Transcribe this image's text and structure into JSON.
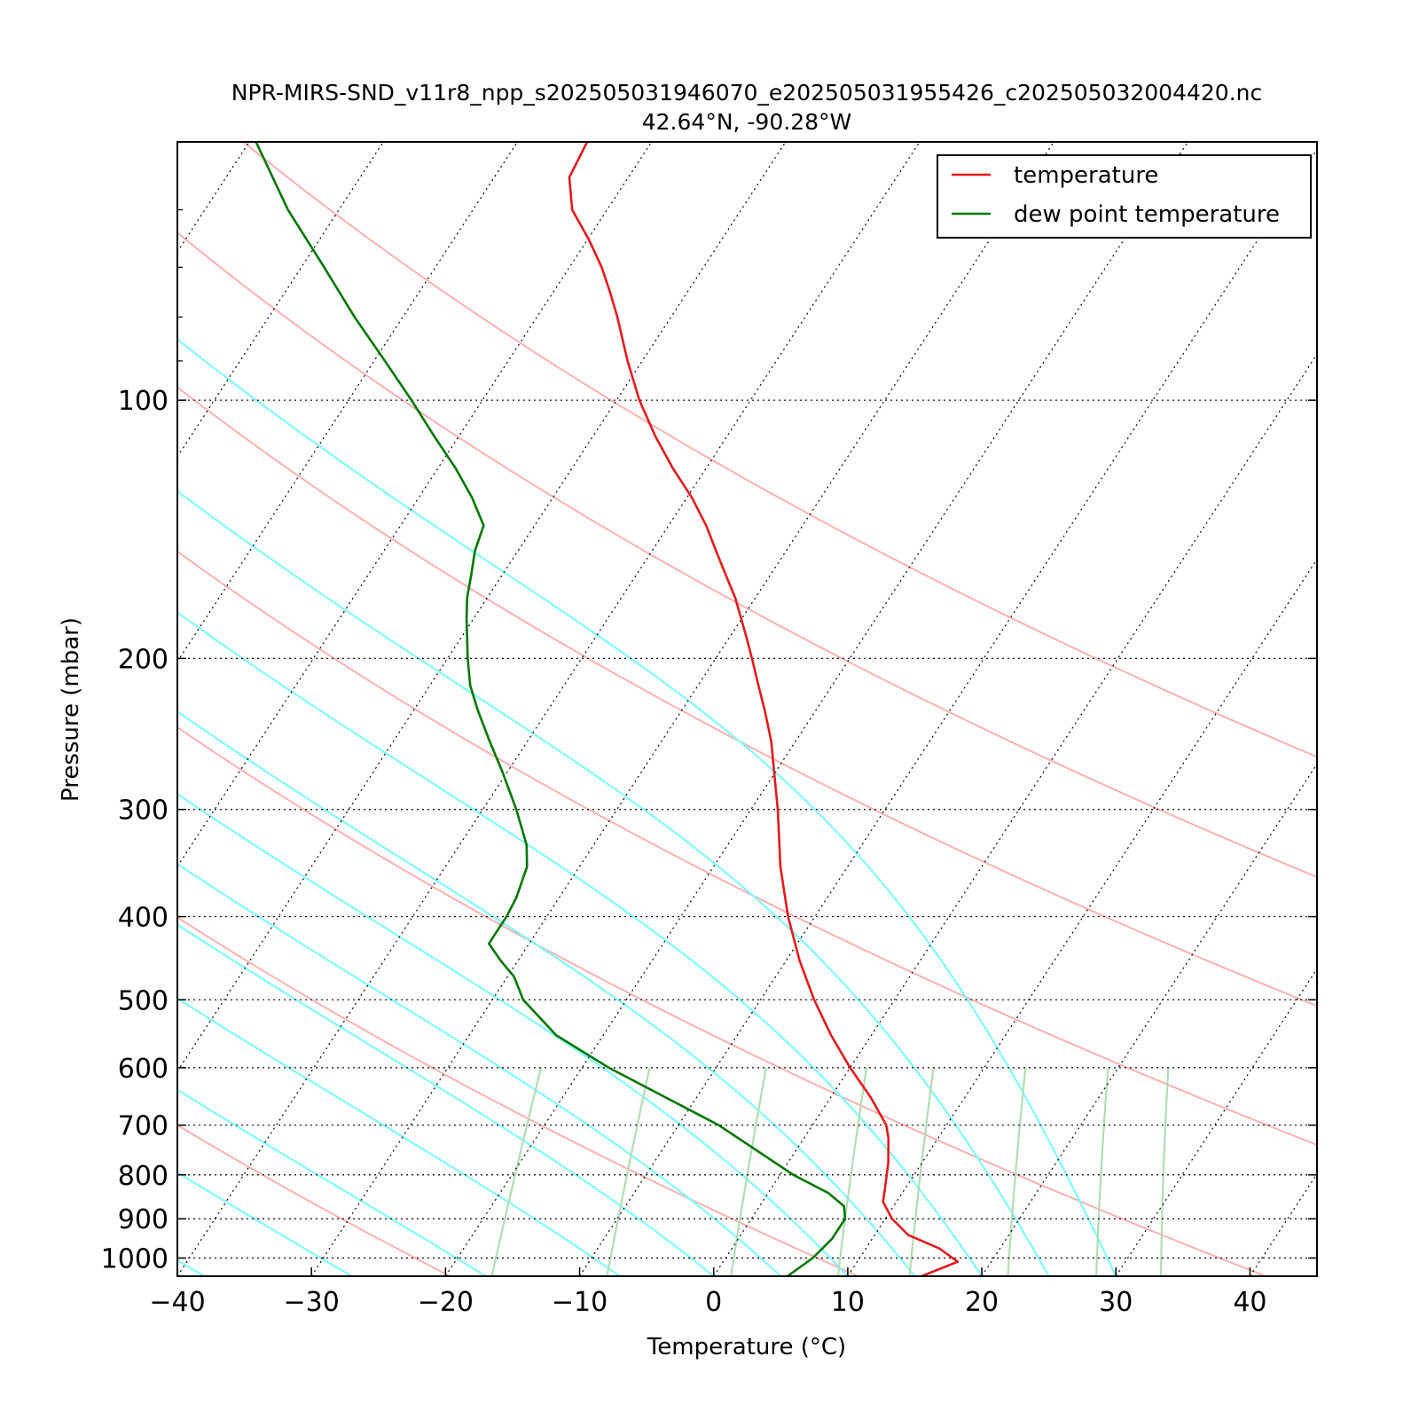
{
  "chart_data": {
    "type": "line",
    "subtype": "skew-T log-P",
    "title": "NPR-MIRS-SND_v11r8_npp_s202505031946070_e202505031955426_c202505032004420.nc",
    "subtitle": "42.64°N, -90.28°W",
    "xlabel": "Temperature (°C)",
    "ylabel": "Pressure (mbar)",
    "xlim": [
      -40,
      45
    ],
    "ylim": [
      1050,
      50
    ],
    "y_scale": "log",
    "x_ticks": [
      -40,
      -30,
      -20,
      -10,
      0,
      10,
      20,
      30,
      40
    ],
    "x_tick_labels": [
      "−40",
      "−30",
      "−20",
      "−10",
      "0",
      "10",
      "20",
      "30",
      "40"
    ],
    "y_ticks": [
      100,
      200,
      300,
      400,
      500,
      600,
      700,
      800,
      900,
      1000
    ],
    "y_tick_labels": [
      "100",
      "200",
      "300",
      "400",
      "500",
      "600",
      "700",
      "800",
      "900",
      "1000"
    ],
    "isobar_gridlines": true,
    "legend_position": "top-right",
    "legend": [
      "temperature",
      "dew point temperature"
    ],
    "series": [
      {
        "name": "temperature",
        "color": "#e31a1c",
        "points": [
          [
            1050,
            15.5
          ],
          [
            1010,
            17.5
          ],
          [
            975,
            15.5
          ],
          [
            940,
            12.5
          ],
          [
            900,
            10.5
          ],
          [
            860,
            9.0
          ],
          [
            830,
            8.5
          ],
          [
            775,
            7.5
          ],
          [
            725,
            6.3
          ],
          [
            700,
            5.5
          ],
          [
            650,
            3.0
          ],
          [
            600,
            0.0
          ],
          [
            550,
            -3.0
          ],
          [
            500,
            -6.0
          ],
          [
            450,
            -9.0
          ],
          [
            400,
            -12.0
          ],
          [
            350,
            -15.0
          ],
          [
            300,
            -18.0
          ],
          [
            270,
            -20.2
          ],
          [
            250,
            -21.8
          ],
          [
            230,
            -23.8
          ],
          [
            215,
            -25.5
          ],
          [
            200,
            -27.3
          ],
          [
            190,
            -28.6
          ],
          [
            170,
            -31.5
          ],
          [
            160,
            -33.3
          ],
          [
            150,
            -35.2
          ],
          [
            140,
            -37.2
          ],
          [
            130,
            -39.6
          ],
          [
            120,
            -42.5
          ],
          [
            110,
            -45.4
          ],
          [
            100,
            -48.3
          ],
          [
            90,
            -51.1
          ],
          [
            80,
            -54.0
          ],
          [
            75,
            -55.7
          ],
          [
            70,
            -57.6
          ],
          [
            65,
            -59.9
          ],
          [
            60,
            -62.6
          ],
          [
            55,
            -64.4
          ],
          [
            50,
            -64.8
          ]
        ]
      },
      {
        "name": "dew point temperature",
        "color": "#007700",
        "points": [
          [
            1050,
            5.5
          ],
          [
            1000,
            6.5
          ],
          [
            950,
            7.0
          ],
          [
            900,
            7.0
          ],
          [
            870,
            6.3
          ],
          [
            840,
            4.5
          ],
          [
            800,
            1.0
          ],
          [
            700,
            -7.0
          ],
          [
            600,
            -18.0
          ],
          [
            550,
            -23.5
          ],
          [
            500,
            -27.7
          ],
          [
            470,
            -29.5
          ],
          [
            450,
            -31.3
          ],
          [
            430,
            -33.0
          ],
          [
            400,
            -33.0
          ],
          [
            380,
            -33.2
          ],
          [
            350,
            -33.9
          ],
          [
            330,
            -35.0
          ],
          [
            300,
            -37.5
          ],
          [
            270,
            -40.5
          ],
          [
            250,
            -42.8
          ],
          [
            230,
            -45.2
          ],
          [
            215,
            -47.0
          ],
          [
            200,
            -48.5
          ],
          [
            180,
            -50.5
          ],
          [
            170,
            -51.5
          ],
          [
            160,
            -52.3
          ],
          [
            150,
            -53.2
          ],
          [
            140,
            -53.8
          ],
          [
            130,
            -56.0
          ],
          [
            120,
            -58.7
          ],
          [
            110,
            -61.9
          ],
          [
            100,
            -65.3
          ],
          [
            90,
            -69.2
          ],
          [
            80,
            -73.6
          ],
          [
            70,
            -78.3
          ],
          [
            60,
            -83.8
          ],
          [
            50,
            -89.5
          ]
        ]
      }
    ],
    "reference_lines": {
      "dry_adiabats_theta_K": [
        220,
        250,
        280,
        310,
        340,
        370,
        400,
        430
      ],
      "moist_adiabats_start_C": [
        -38,
        -27,
        -17,
        -7,
        0,
        5,
        10,
        15,
        20,
        25,
        30
      ],
      "mixing_ratio_lines_g_per_kg": [
        1,
        2,
        4,
        7,
        10,
        16,
        24,
        32
      ],
      "isotherms_C": [
        -100,
        -90,
        -80,
        -70,
        -60,
        -50,
        -40,
        -30,
        -20,
        -10,
        0,
        10,
        20,
        30,
        40
      ]
    },
    "colors": {
      "dry_adiabat": "#ffb0b0",
      "moist_adiabat": "#7ffdfd",
      "mixing_ratio": "#b2dcb2",
      "isotherm": "#000000",
      "isobar": "#000000"
    }
  }
}
